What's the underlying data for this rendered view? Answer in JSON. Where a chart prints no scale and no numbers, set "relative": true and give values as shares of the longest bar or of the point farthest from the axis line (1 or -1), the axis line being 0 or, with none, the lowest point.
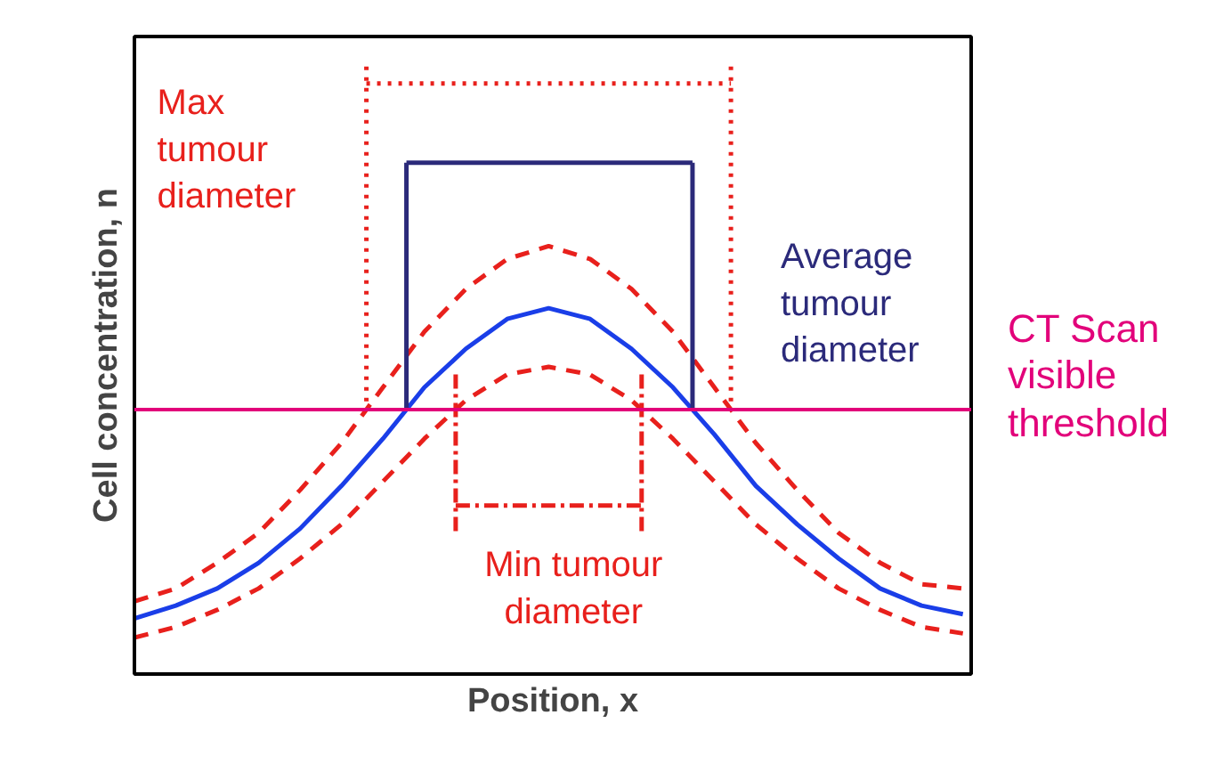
{
  "chart_data": {
    "type": "line",
    "relative": true,
    "xlabel": "Position, x",
    "ylabel": "Cell concentration, n",
    "categories": [
      null,
      null,
      null,
      null,
      null,
      null,
      null,
      null,
      null,
      null,
      null,
      null,
      null,
      null,
      null,
      null,
      null,
      null,
      null,
      null,
      null
    ],
    "series": [
      {
        "color": "#1a3ee8",
        "line_style": "solid",
        "values": [
          0.13,
          0.16,
          0.2,
          0.26,
          0.34,
          0.44,
          0.55,
          0.67,
          0.76,
          0.83,
          0.855,
          0.83,
          0.76,
          0.67,
          0.56,
          0.44,
          0.35,
          0.27,
          0.2,
          0.16,
          0.14
        ]
      },
      {
        "color": "#e8201c",
        "line_style": "dashed",
        "values": [
          0.17,
          0.2,
          0.26,
          0.33,
          0.43,
          0.54,
          0.67,
          0.8,
          0.9,
          0.97,
          1.0,
          0.97,
          0.9,
          0.8,
          0.67,
          0.54,
          0.43,
          0.33,
          0.26,
          0.21,
          0.2
        ]
      },
      {
        "color": "#e8201c",
        "line_style": "dashed",
        "values": [
          0.085,
          0.11,
          0.15,
          0.2,
          0.27,
          0.35,
          0.45,
          0.55,
          0.64,
          0.7,
          0.718,
          0.7,
          0.64,
          0.55,
          0.45,
          0.35,
          0.27,
          0.2,
          0.15,
          0.11,
          0.095
        ]
      }
    ],
    "ref_lines": [
      {
        "axis": "y",
        "value": 0.618,
        "label": "CT Scan visible threshold",
        "color": "#e2007a"
      }
    ],
    "annotations": [
      "Max tumour diameter",
      "Average tumour diameter",
      "Min tumour diameter"
    ]
  }
}
